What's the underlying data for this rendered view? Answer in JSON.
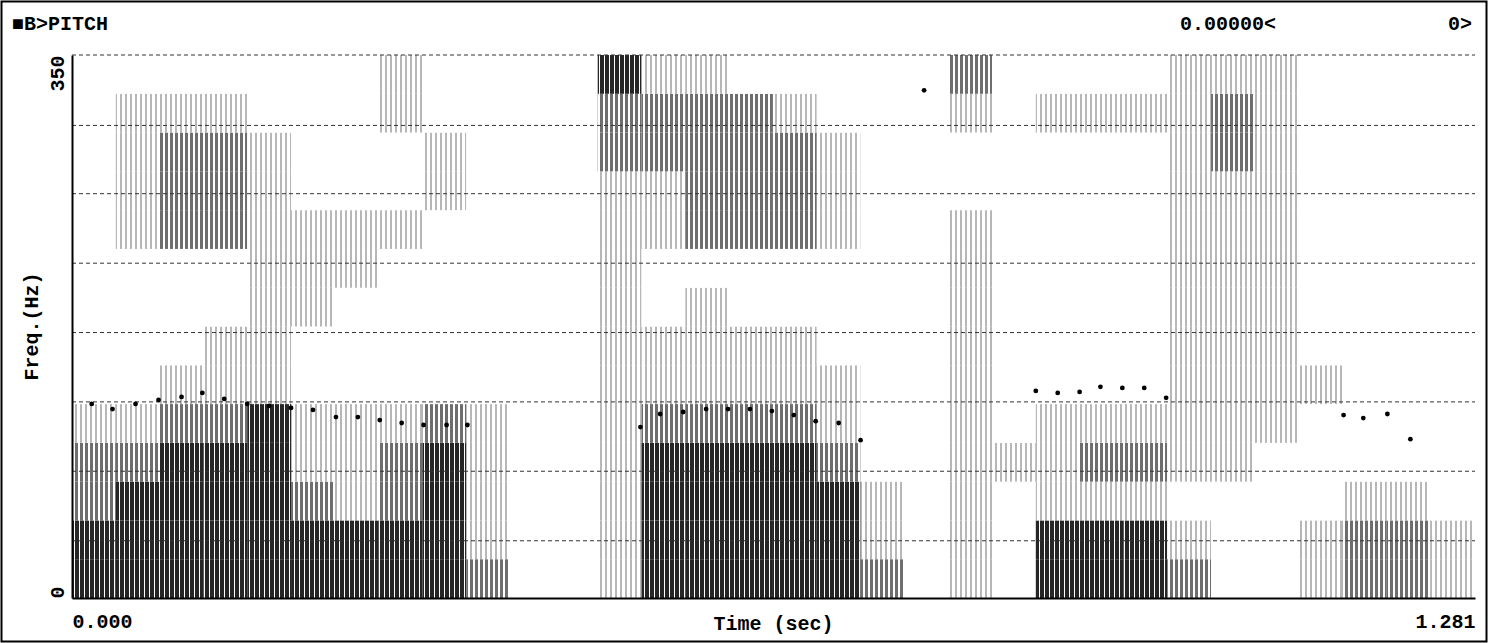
{
  "chart_data": {
    "type": "spectrogram",
    "title": "■B>PITCH",
    "header_right": "0.00000<",
    "header_counter": "0>",
    "x_label": "Time (sec)",
    "y_label": "Freq.(Hz)",
    "xlim": [
      0,
      1.281
    ],
    "ylim": [
      0,
      350
    ],
    "xticks": [
      {
        "value": 0,
        "label": "0.000"
      },
      {
        "value": 1.281,
        "label": "1.281"
      }
    ],
    "yticks": [
      0,
      350
    ],
    "grid": true,
    "grid_lines": [
      36.9,
      81.7,
      126.4,
      171.1,
      215.8,
      260.6,
      304.6,
      350
    ],
    "spectrogram": {
      "time_edges": [
        0,
        0.04,
        0.08,
        0.12,
        0.16,
        0.2,
        0.24,
        0.28,
        0.32,
        0.36,
        0.4,
        0.44,
        0.48,
        0.52,
        0.56,
        0.6,
        0.64,
        0.68,
        0.72,
        0.76,
        0.8,
        0.84,
        0.88,
        0.92,
        0.96,
        1.0,
        1.04,
        1.08,
        1.12,
        1.16,
        1.2,
        1.24,
        1.281
      ],
      "freq_edges": [
        0,
        25,
        50,
        75,
        100,
        125,
        150,
        175,
        200,
        225,
        250,
        275,
        300,
        325,
        350
      ],
      "levels": [
        [
          3,
          3,
          3,
          3,
          3,
          3,
          3,
          3,
          3,
          2,
          0,
          0,
          1,
          3,
          3,
          3,
          3,
          3,
          2,
          0,
          1,
          0,
          3,
          3,
          3,
          2,
          0,
          0,
          1,
          2,
          2,
          1
        ],
        [
          3,
          3,
          3,
          3,
          3,
          3,
          3,
          3,
          3,
          1,
          0,
          0,
          1,
          3,
          3,
          3,
          3,
          3,
          1,
          0,
          1,
          0,
          3,
          3,
          3,
          1,
          0,
          0,
          1,
          2,
          2,
          1
        ],
        [
          2,
          3,
          3,
          3,
          3,
          2,
          1,
          2,
          3,
          1,
          0,
          0,
          1,
          3,
          3,
          3,
          3,
          3,
          1,
          0,
          1,
          0,
          1,
          1,
          1,
          0,
          0,
          0,
          0,
          1,
          1,
          0
        ],
        [
          2,
          2,
          3,
          3,
          3,
          1,
          1,
          2,
          3,
          1,
          0,
          0,
          1,
          3,
          3,
          3,
          3,
          2,
          0,
          0,
          1,
          1,
          1,
          2,
          2,
          1,
          1,
          0,
          0,
          0,
          0,
          0
        ],
        [
          1,
          1,
          2,
          2,
          3,
          1,
          1,
          1,
          2,
          1,
          0,
          0,
          1,
          2,
          2,
          2,
          2,
          1,
          0,
          0,
          1,
          0,
          1,
          1,
          1,
          1,
          1,
          1,
          0,
          0,
          0,
          0
        ],
        [
          0,
          0,
          1,
          1,
          1,
          0,
          0,
          0,
          0,
          0,
          0,
          0,
          1,
          1,
          1,
          1,
          1,
          1,
          0,
          0,
          1,
          0,
          0,
          0,
          0,
          1,
          1,
          1,
          1,
          0,
          0,
          0
        ],
        [
          0,
          0,
          0,
          1,
          1,
          0,
          0,
          0,
          0,
          0,
          0,
          0,
          1,
          1,
          1,
          1,
          1,
          0,
          0,
          0,
          1,
          0,
          0,
          0,
          0,
          1,
          1,
          1,
          0,
          0,
          0,
          0
        ],
        [
          0,
          0,
          0,
          0,
          1,
          1,
          0,
          0,
          0,
          0,
          0,
          0,
          1,
          0,
          1,
          0,
          0,
          0,
          0,
          0,
          1,
          0,
          0,
          0,
          0,
          1,
          1,
          1,
          0,
          0,
          0,
          0
        ],
        [
          0,
          0,
          0,
          0,
          1,
          1,
          1,
          0,
          0,
          0,
          0,
          0,
          1,
          0,
          0,
          0,
          0,
          0,
          0,
          0,
          1,
          0,
          0,
          0,
          0,
          1,
          1,
          1,
          0,
          0,
          0,
          0
        ],
        [
          0,
          1,
          2,
          2,
          1,
          1,
          1,
          1,
          0,
          0,
          0,
          0,
          1,
          1,
          2,
          2,
          2,
          1,
          0,
          0,
          1,
          0,
          0,
          0,
          0,
          1,
          1,
          1,
          0,
          0,
          0,
          0
        ],
        [
          0,
          1,
          2,
          2,
          1,
          0,
          0,
          0,
          1,
          0,
          0,
          0,
          1,
          1,
          2,
          2,
          2,
          1,
          0,
          0,
          0,
          0,
          0,
          0,
          0,
          1,
          1,
          1,
          0,
          0,
          0,
          0
        ],
        [
          0,
          1,
          2,
          2,
          1,
          0,
          0,
          0,
          1,
          0,
          0,
          0,
          2,
          2,
          2,
          2,
          2,
          1,
          0,
          0,
          0,
          0,
          0,
          0,
          0,
          1,
          2,
          1,
          0,
          0,
          0,
          0
        ],
        [
          0,
          1,
          1,
          1,
          0,
          0,
          0,
          1,
          0,
          0,
          0,
          0,
          2,
          2,
          2,
          2,
          1,
          0,
          0,
          0,
          1,
          0,
          1,
          1,
          1,
          1,
          2,
          1,
          0,
          0,
          0,
          0
        ],
        [
          0,
          0,
          0,
          0,
          0,
          0,
          0,
          1,
          0,
          0,
          0,
          0,
          3,
          1,
          1,
          0,
          0,
          0,
          0,
          0,
          2,
          0,
          0,
          0,
          0,
          1,
          1,
          1,
          0,
          0,
          0,
          0
        ]
      ]
    },
    "series": [
      {
        "type": "scatter",
        "marker": "dot",
        "color": "#000000",
        "x": [
          0.018,
          0.037,
          0.058,
          0.079,
          0.1,
          0.119,
          0.139,
          0.16,
          0.18,
          0.2,
          0.22,
          0.241,
          0.261,
          0.281,
          0.301,
          0.321,
          0.342,
          0.361,
          0.519,
          0.537,
          0.558,
          0.579,
          0.599,
          0.619,
          0.639,
          0.659,
          0.679,
          0.7,
          0.72,
          0.778,
          0.88,
          0.9,
          0.92,
          0.939,
          0.959,
          0.979,
          0.999,
          1.161,
          1.179,
          1.201,
          1.222
        ],
        "values": [
          125.1,
          121.8,
          125.1,
          127.7,
          129.6,
          132.2,
          128.3,
          125.1,
          123.8,
          122.5,
          121.2,
          116.6,
          116.6,
          114.7,
          112.8,
          111.5,
          111.5,
          111.5,
          110.2,
          118.6,
          119.9,
          121.8,
          121.8,
          121.8,
          120.5,
          117.9,
          114.0,
          112.8,
          101.7,
          327.2,
          133.5,
          132.2,
          132.8,
          136.1,
          135.4,
          135.4,
          129.0,
          117.9,
          116.0,
          118.6,
          102.4
        ]
      }
    ]
  }
}
